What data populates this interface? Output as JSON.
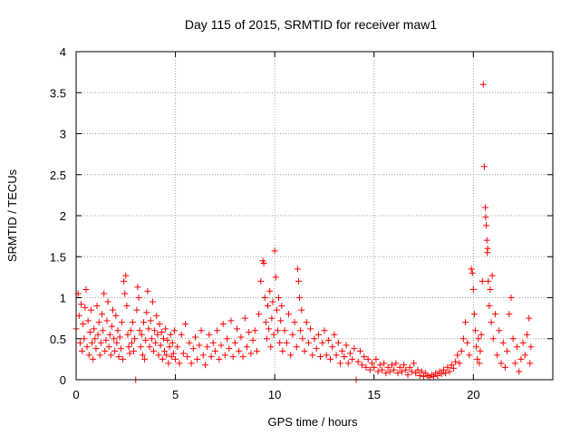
{
  "chart_data": {
    "type": "scatter",
    "title": "Day 115 of 2015, SRMTID for receiver maw1",
    "xlabel": "GPS time / hours",
    "ylabel": "SRMTID / TECUs",
    "xlim": [
      0,
      24
    ],
    "ylim": [
      0,
      4
    ],
    "grid": true,
    "marker": "+",
    "series_color": "#ff0000",
    "x_ticks": [
      {
        "value": 0,
        "label": "0"
      },
      {
        "value": 5,
        "label": "5"
      },
      {
        "value": 10,
        "label": "10"
      },
      {
        "value": 15,
        "label": "15"
      },
      {
        "value": 20,
        "label": "20"
      }
    ],
    "y_ticks": [
      {
        "value": 0,
        "label": "0"
      },
      {
        "value": 0.5,
        "label": "0.5"
      },
      {
        "value": 1,
        "label": "1"
      },
      {
        "value": 1.5,
        "label": "1.5"
      },
      {
        "value": 2,
        "label": "2"
      },
      {
        "value": 2.5,
        "label": "2.5"
      },
      {
        "value": 3,
        "label": "3"
      },
      {
        "value": 3.5,
        "label": "3.5"
      },
      {
        "value": 4,
        "label": "4"
      }
    ],
    "points": [
      [
        0.0,
        0.62
      ],
      [
        0.1,
        1.05
      ],
      [
        0.15,
        0.78
      ],
      [
        0.2,
        0.45
      ],
      [
        0.25,
        0.92
      ],
      [
        0.3,
        0.35
      ],
      [
        0.35,
        0.68
      ],
      [
        0.4,
        0.5
      ],
      [
        0.45,
        0.88
      ],
      [
        0.5,
        1.1
      ],
      [
        0.55,
        0.4
      ],
      [
        0.6,
        0.72
      ],
      [
        0.65,
        0.3
      ],
      [
        0.7,
        0.58
      ],
      [
        0.75,
        0.85
      ],
      [
        0.8,
        0.45
      ],
      [
        0.85,
        0.25
      ],
      [
        0.9,
        0.62
      ],
      [
        0.95,
        0.5
      ],
      [
        1.0,
        0.38
      ],
      [
        1.05,
        0.9
      ],
      [
        1.1,
        0.55
      ],
      [
        1.15,
        0.7
      ],
      [
        1.2,
        0.3
      ],
      [
        1.25,
        0.45
      ],
      [
        1.3,
        0.8
      ],
      [
        1.35,
        0.6
      ],
      [
        1.4,
        1.05
      ],
      [
        1.45,
        0.35
      ],
      [
        1.5,
        0.48
      ],
      [
        1.55,
        0.72
      ],
      [
        1.6,
        0.95
      ],
      [
        1.65,
        0.4
      ],
      [
        1.7,
        0.55
      ],
      [
        1.75,
        0.3
      ],
      [
        1.8,
        0.65
      ],
      [
        1.85,
        0.85
      ],
      [
        1.9,
        0.5
      ],
      [
        1.95,
        0.35
      ],
      [
        2.0,
        0.78
      ],
      [
        2.05,
        0.45
      ],
      [
        2.1,
        0.6
      ],
      [
        2.15,
        0.28
      ],
      [
        2.2,
        0.52
      ],
      [
        2.25,
        0.38
      ],
      [
        2.3,
        0.7
      ],
      [
        2.35,
        0.25
      ],
      [
        2.4,
        1.2
      ],
      [
        2.45,
        1.05
      ],
      [
        2.5,
        1.27
      ],
      [
        2.55,
        0.9
      ],
      [
        2.6,
        0.55
      ],
      [
        2.65,
        0.4
      ],
      [
        2.7,
        0.32
      ],
      [
        2.75,
        0.6
      ],
      [
        2.8,
        0.45
      ],
      [
        2.85,
        0.7
      ],
      [
        2.9,
        0.35
      ],
      [
        2.95,
        0.5
      ],
      [
        3.0,
        0.0
      ],
      [
        3.05,
        0.85
      ],
      [
        3.1,
        1.13
      ],
      [
        3.15,
        1.0
      ],
      [
        3.2,
        0.6
      ],
      [
        3.25,
        0.4
      ],
      [
        3.3,
        0.55
      ],
      [
        3.35,
        0.3
      ],
      [
        3.4,
        0.7
      ],
      [
        3.45,
        0.25
      ],
      [
        3.5,
        0.48
      ],
      [
        3.55,
        0.82
      ],
      [
        3.6,
        1.08
      ],
      [
        3.65,
        0.62
      ],
      [
        3.7,
        0.4
      ],
      [
        3.75,
        0.72
      ],
      [
        3.8,
        0.5
      ],
      [
        3.85,
        0.95
      ],
      [
        3.9,
        0.35
      ],
      [
        3.95,
        0.6
      ],
      [
        4.0,
        0.45
      ],
      [
        4.05,
        0.78
      ],
      [
        4.1,
        0.55
      ],
      [
        4.15,
        0.3
      ],
      [
        4.2,
        0.68
      ],
      [
        4.25,
        0.42
      ],
      [
        4.3,
        0.58
      ],
      [
        4.35,
        0.25
      ],
      [
        4.4,
        0.5
      ],
      [
        4.45,
        0.35
      ],
      [
        4.5,
        0.62
      ],
      [
        4.55,
        0.3
      ],
      [
        4.6,
        0.48
      ],
      [
        4.65,
        0.2
      ],
      [
        4.7,
        0.4
      ],
      [
        4.75,
        0.55
      ],
      [
        4.8,
        0.28
      ],
      [
        4.85,
        0.45
      ],
      [
        4.9,
        0.32
      ],
      [
        4.95,
        0.6
      ],
      [
        5.0,
        0.25
      ],
      [
        5.1,
        0.4
      ],
      [
        5.2,
        0.2
      ],
      [
        5.3,
        0.55
      ],
      [
        5.4,
        0.32
      ],
      [
        5.5,
        0.68
      ],
      [
        5.6,
        0.28
      ],
      [
        5.7,
        0.45
      ],
      [
        5.8,
        0.2
      ],
      [
        5.9,
        0.38
      ],
      [
        6.0,
        0.52
      ],
      [
        6.1,
        0.25
      ],
      [
        6.2,
        0.42
      ],
      [
        6.3,
        0.6
      ],
      [
        6.4,
        0.3
      ],
      [
        6.5,
        0.18
      ],
      [
        6.6,
        0.4
      ],
      [
        6.7,
        0.55
      ],
      [
        6.8,
        0.28
      ],
      [
        6.9,
        0.45
      ],
      [
        7.0,
        0.35
      ],
      [
        7.1,
        0.6
      ],
      [
        7.2,
        0.25
      ],
      [
        7.3,
        0.42
      ],
      [
        7.4,
        0.68
      ],
      [
        7.5,
        0.3
      ],
      [
        7.6,
        0.5
      ],
      [
        7.7,
        0.38
      ],
      [
        7.8,
        0.72
      ],
      [
        7.9,
        0.28
      ],
      [
        8.0,
        0.45
      ],
      [
        8.1,
        0.62
      ],
      [
        8.2,
        0.35
      ],
      [
        8.3,
        0.52
      ],
      [
        8.4,
        0.28
      ],
      [
        8.5,
        0.75
      ],
      [
        8.6,
        0.4
      ],
      [
        8.7,
        0.58
      ],
      [
        8.8,
        0.32
      ],
      [
        8.9,
        0.48
      ],
      [
        9.0,
        0.6
      ],
      [
        9.1,
        0.35
      ],
      [
        9.2,
        0.8
      ],
      [
        9.3,
        1.2
      ],
      [
        9.4,
        1.45
      ],
      [
        9.45,
        1.42
      ],
      [
        9.5,
        1.0
      ],
      [
        9.55,
        0.7
      ],
      [
        9.6,
        0.5
      ],
      [
        9.65,
        0.9
      ],
      [
        9.7,
        0.62
      ],
      [
        9.75,
        1.08
      ],
      [
        9.8,
        0.4
      ],
      [
        9.85,
        0.75
      ],
      [
        9.9,
        0.95
      ],
      [
        9.95,
        0.55
      ],
      [
        10.0,
        1.57
      ],
      [
        10.05,
        1.25
      ],
      [
        10.1,
        0.85
      ],
      [
        10.15,
        0.6
      ],
      [
        10.2,
        1.0
      ],
      [
        10.25,
        0.45
      ],
      [
        10.3,
        0.72
      ],
      [
        10.35,
        0.9
      ],
      [
        10.4,
        0.35
      ],
      [
        10.5,
        0.6
      ],
      [
        10.6,
        0.45
      ],
      [
        10.7,
        0.8
      ],
      [
        10.8,
        0.3
      ],
      [
        10.9,
        0.55
      ],
      [
        11.0,
        0.7
      ],
      [
        11.1,
        0.4
      ],
      [
        11.15,
        1.35
      ],
      [
        11.2,
        1.2
      ],
      [
        11.25,
        1.0
      ],
      [
        11.3,
        0.6
      ],
      [
        11.35,
        0.85
      ],
      [
        11.4,
        0.5
      ],
      [
        11.5,
        0.35
      ],
      [
        11.6,
        0.7
      ],
      [
        11.7,
        0.45
      ],
      [
        11.8,
        0.62
      ],
      [
        11.9,
        0.3
      ],
      [
        12.0,
        0.5
      ],
      [
        12.1,
        0.38
      ],
      [
        12.2,
        0.55
      ],
      [
        12.3,
        0.28
      ],
      [
        12.4,
        0.45
      ],
      [
        12.5,
        0.6
      ],
      [
        12.6,
        0.3
      ],
      [
        12.7,
        0.48
      ],
      [
        12.8,
        0.25
      ],
      [
        12.9,
        0.4
      ],
      [
        13.0,
        0.55
      ],
      [
        13.1,
        0.3
      ],
      [
        13.2,
        0.45
      ],
      [
        13.3,
        0.2
      ],
      [
        13.4,
        0.35
      ],
      [
        13.5,
        0.28
      ],
      [
        13.6,
        0.42
      ],
      [
        13.7,
        0.2
      ],
      [
        13.8,
        0.32
      ],
      [
        13.9,
        0.25
      ],
      [
        14.0,
        0.38
      ],
      [
        14.1,
        0.0
      ],
      [
        14.2,
        0.22
      ],
      [
        14.3,
        0.35
      ],
      [
        14.4,
        0.18
      ],
      [
        14.5,
        0.28
      ],
      [
        14.6,
        0.15
      ],
      [
        14.7,
        0.25
      ],
      [
        14.8,
        0.12
      ],
      [
        14.9,
        0.2
      ],
      [
        15.0,
        0.15
      ],
      [
        15.1,
        0.25
      ],
      [
        15.2,
        0.1
      ],
      [
        15.3,
        0.18
      ],
      [
        15.4,
        0.12
      ],
      [
        15.5,
        0.2
      ],
      [
        15.6,
        0.08
      ],
      [
        15.7,
        0.15
      ],
      [
        15.8,
        0.1
      ],
      [
        15.9,
        0.18
      ],
      [
        16.0,
        0.12
      ],
      [
        16.1,
        0.2
      ],
      [
        16.2,
        0.08
      ],
      [
        16.3,
        0.15
      ],
      [
        16.4,
        0.1
      ],
      [
        16.5,
        0.18
      ],
      [
        16.6,
        0.12
      ],
      [
        16.7,
        0.06
      ],
      [
        16.8,
        0.15
      ],
      [
        16.9,
        0.1
      ],
      [
        17.0,
        0.2
      ],
      [
        17.1,
        0.08
      ],
      [
        17.2,
        0.12
      ],
      [
        17.3,
        0.05
      ],
      [
        17.4,
        0.1
      ],
      [
        17.5,
        0.04
      ],
      [
        17.6,
        0.08
      ],
      [
        17.7,
        0.05
      ],
      [
        17.8,
        0.03
      ],
      [
        17.9,
        0.06
      ],
      [
        18.0,
        0.04
      ],
      [
        18.1,
        0.08
      ],
      [
        18.2,
        0.05
      ],
      [
        18.3,
        0.1
      ],
      [
        18.4,
        0.07
      ],
      [
        18.5,
        0.12
      ],
      [
        18.6,
        0.08
      ],
      [
        18.7,
        0.15
      ],
      [
        18.8,
        0.1
      ],
      [
        18.9,
        0.18
      ],
      [
        19.0,
        0.14
      ],
      [
        19.1,
        0.22
      ],
      [
        19.2,
        0.3
      ],
      [
        19.3,
        0.2
      ],
      [
        19.4,
        0.35
      ],
      [
        19.5,
        0.5
      ],
      [
        19.6,
        0.7
      ],
      [
        19.7,
        0.45
      ],
      [
        19.8,
        0.3
      ],
      [
        19.9,
        1.35
      ],
      [
        19.95,
        1.3
      ],
      [
        20.0,
        1.1
      ],
      [
        20.05,
        0.8
      ],
      [
        20.1,
        0.6
      ],
      [
        20.15,
        0.4
      ],
      [
        20.2,
        0.25
      ],
      [
        20.25,
        0.5
      ],
      [
        20.3,
        0.2
      ],
      [
        20.35,
        0.35
      ],
      [
        20.4,
        0.55
      ],
      [
        20.45,
        1.2
      ],
      [
        20.5,
        3.6
      ],
      [
        20.55,
        2.6
      ],
      [
        20.6,
        2.1
      ],
      [
        20.62,
        1.98
      ],
      [
        20.65,
        1.88
      ],
      [
        20.68,
        1.7
      ],
      [
        20.7,
        1.55
      ],
      [
        20.72,
        1.6
      ],
      [
        20.75,
        1.2
      ],
      [
        20.8,
        0.9
      ],
      [
        20.85,
        1.1
      ],
      [
        20.9,
        0.7
      ],
      [
        20.95,
        1.27
      ],
      [
        21.0,
        0.5
      ],
      [
        21.1,
        0.8
      ],
      [
        21.2,
        0.3
      ],
      [
        21.3,
        0.6
      ],
      [
        21.4,
        0.2
      ],
      [
        21.5,
        0.45
      ],
      [
        21.6,
        0.15
      ],
      [
        21.7,
        0.35
      ],
      [
        21.8,
        0.8
      ],
      [
        21.9,
        1.0
      ],
      [
        22.0,
        0.5
      ],
      [
        22.1,
        0.2
      ],
      [
        22.2,
        0.4
      ],
      [
        22.3,
        0.1
      ],
      [
        22.4,
        0.25
      ],
      [
        22.5,
        0.45
      ],
      [
        22.6,
        0.3
      ],
      [
        22.7,
        0.55
      ],
      [
        22.8,
        0.75
      ],
      [
        22.85,
        0.2
      ],
      [
        22.9,
        0.4
      ]
    ]
  }
}
